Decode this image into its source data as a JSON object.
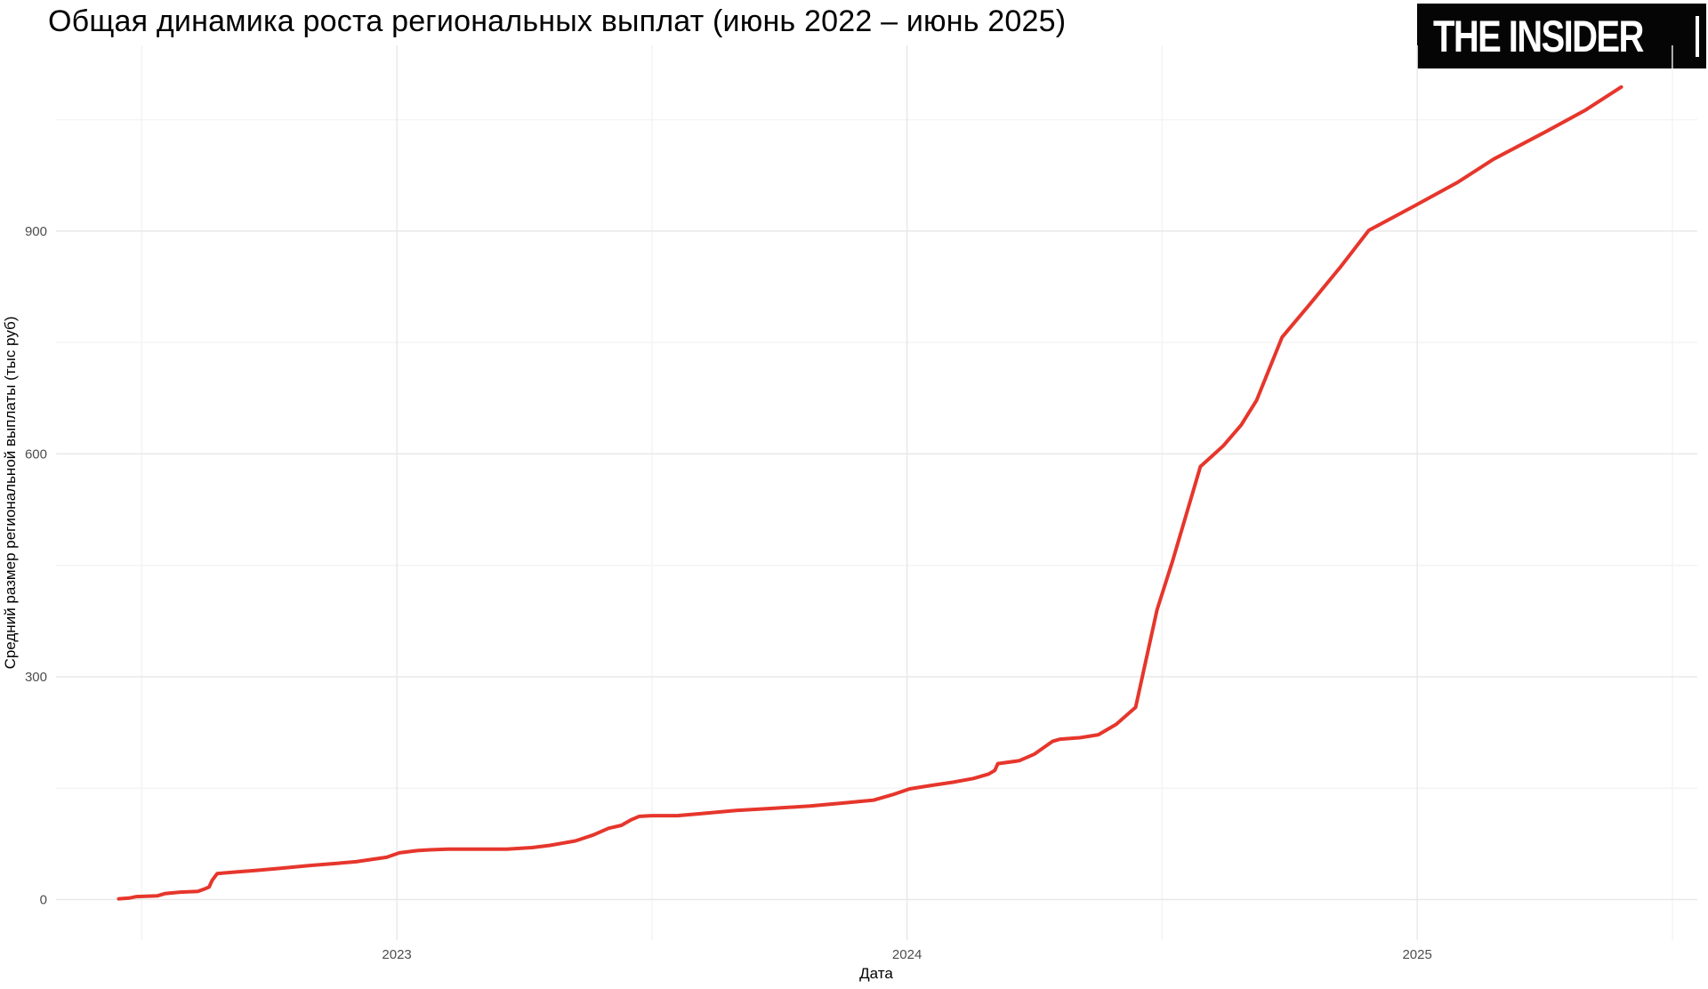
{
  "header": {
    "title": "Общая динамика роста региональных выплат (июнь 2022 – июнь 2025)",
    "logo_text": "THE INSIDER"
  },
  "colors": {
    "line": "#e6362c",
    "grid_major": "#e7e7e7",
    "grid_minor": "#f3f3f3",
    "tick_text": "#4d4d4d",
    "axis_title_text": "#000000",
    "logo_bg": "#050505",
    "logo_fg": "#ffffff",
    "background": "#ffffff"
  },
  "chart_data": {
    "type": "line",
    "title": "Общая динамика роста региональных выплат (июнь 2022 – июнь 2025)",
    "xlabel": "Дата",
    "ylabel": "Средний размер региональной выплаты (тыс руб)",
    "legend": "none",
    "grid": "on",
    "xlim": [
      2022.332,
      2025.549
    ],
    "ylim": [
      -54.5,
      1150
    ],
    "x_ticks": [
      {
        "value": 2023,
        "label": "2023"
      },
      {
        "value": 2024,
        "label": "2024"
      },
      {
        "value": 2025,
        "label": "2025"
      }
    ],
    "x_minor": [
      2022.5,
      2023.5,
      2024.5,
      2025.5
    ],
    "y_ticks": [
      {
        "value": 0,
        "label": "0"
      },
      {
        "value": 300,
        "label": "300"
      },
      {
        "value": 600,
        "label": "600"
      },
      {
        "value": 900,
        "label": "900"
      }
    ],
    "y_minor": [
      150,
      450,
      750,
      1050
    ],
    "series": [
      {
        "name": "Средний размер региональной выплаты",
        "color": "#e6362c",
        "points": [
          [
            2022.455,
            1
          ],
          [
            2022.475,
            2
          ],
          [
            2022.49,
            4
          ],
          [
            2022.53,
            5
          ],
          [
            2022.545,
            8
          ],
          [
            2022.575,
            10
          ],
          [
            2022.61,
            11
          ],
          [
            2022.622,
            14
          ],
          [
            2022.632,
            17
          ],
          [
            2022.638,
            26
          ],
          [
            2022.648,
            35
          ],
          [
            2022.68,
            37
          ],
          [
            2022.72,
            39
          ],
          [
            2022.77,
            42
          ],
          [
            2022.83,
            46
          ],
          [
            2022.885,
            49
          ],
          [
            2022.92,
            51
          ],
          [
            2022.95,
            54
          ],
          [
            2022.98,
            57
          ],
          [
            2023.005,
            63
          ],
          [
            2023.04,
            66
          ],
          [
            2023.065,
            67
          ],
          [
            2023.1,
            68
          ],
          [
            2023.215,
            68
          ],
          [
            2023.265,
            70
          ],
          [
            2023.3,
            73
          ],
          [
            2023.35,
            79
          ],
          [
            2023.385,
            87
          ],
          [
            2023.415,
            96
          ],
          [
            2023.44,
            100
          ],
          [
            2023.458,
            107
          ],
          [
            2023.475,
            112
          ],
          [
            2023.5,
            113
          ],
          [
            2023.55,
            113
          ],
          [
            2023.6,
            116
          ],
          [
            2023.665,
            120
          ],
          [
            2023.74,
            123
          ],
          [
            2023.81,
            126
          ],
          [
            2023.875,
            130
          ],
          [
            2023.935,
            134
          ],
          [
            2023.975,
            142
          ],
          [
            2024.005,
            149
          ],
          [
            2024.05,
            154
          ],
          [
            2024.09,
            158
          ],
          [
            2024.13,
            163
          ],
          [
            2024.16,
            169
          ],
          [
            2024.172,
            174
          ],
          [
            2024.178,
            183
          ],
          [
            2024.22,
            187
          ],
          [
            2024.25,
            196
          ],
          [
            2024.285,
            213
          ],
          [
            2024.3,
            216
          ],
          [
            2024.34,
            218
          ],
          [
            2024.375,
            222
          ],
          [
            2024.41,
            236
          ],
          [
            2024.448,
            259
          ],
          [
            2024.49,
            390
          ],
          [
            2024.52,
            455
          ],
          [
            2024.575,
            583
          ],
          [
            2024.62,
            611
          ],
          [
            2024.655,
            639
          ],
          [
            2024.685,
            672
          ],
          [
            2024.735,
            757
          ],
          [
            2024.79,
            802
          ],
          [
            2024.85,
            852
          ],
          [
            2024.905,
            901
          ],
          [
            2024.995,
            934
          ],
          [
            2025.08,
            966
          ],
          [
            2025.15,
            997
          ],
          [
            2025.25,
            1033
          ],
          [
            2025.33,
            1063
          ],
          [
            2025.4,
            1094
          ]
        ]
      }
    ]
  }
}
